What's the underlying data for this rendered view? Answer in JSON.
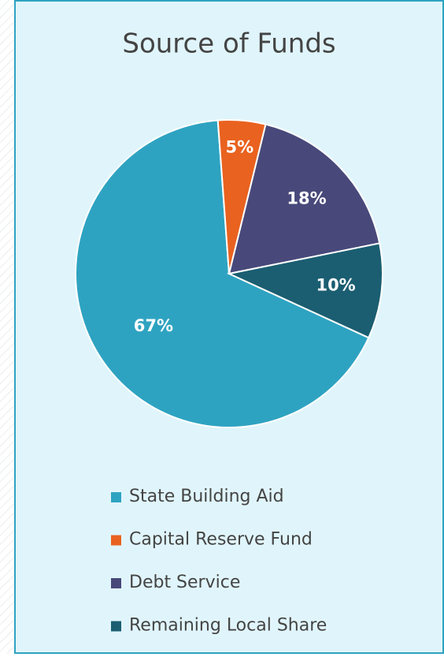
{
  "chart_data": {
    "type": "pie",
    "title": "Source of Funds",
    "categories": [
      "State Building Aid",
      "Capital Reserve Fund",
      "Debt Service",
      "Remaining Local Share"
    ],
    "values": [
      67,
      5,
      18,
      10
    ],
    "value_labels": [
      "67%",
      "5%",
      "18%",
      "10%"
    ],
    "colors": [
      "#2ea3c1",
      "#e9621f",
      "#48497a",
      "#1b5e71"
    ],
    "legend": "bottom"
  }
}
